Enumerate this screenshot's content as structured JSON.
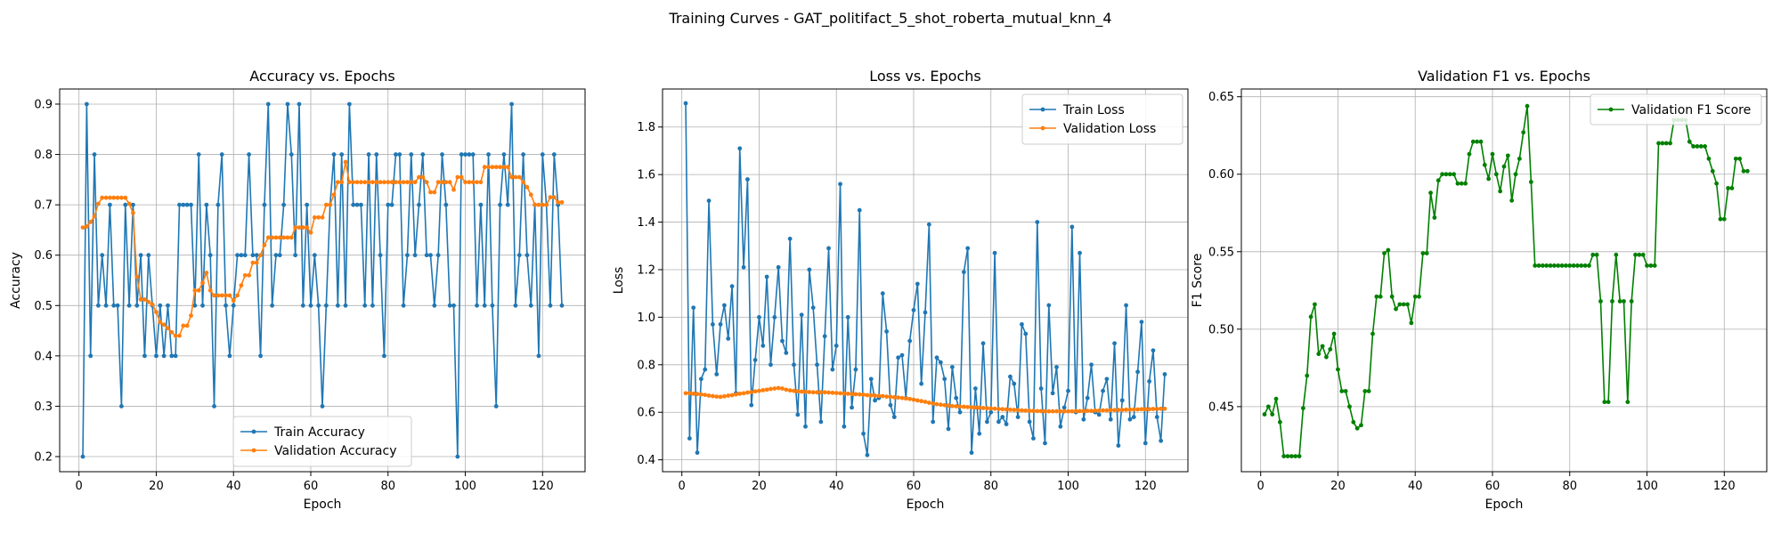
{
  "figure": {
    "suptitle": "Training Curves - GAT_politifact_5_shot_roberta_mutual_knn_4"
  },
  "chart_data": [
    {
      "type": "line",
      "title": "Accuracy vs. Epochs",
      "xlabel": "Epoch",
      "ylabel": "Accuracy",
      "xlim": [
        -5,
        131
      ],
      "ylim": [
        0.17,
        0.93
      ],
      "xticks": [
        0,
        20,
        40,
        60,
        80,
        100,
        120
      ],
      "yticks": [
        0.2,
        0.3,
        0.4,
        0.5,
        0.6,
        0.7,
        0.8,
        0.9
      ],
      "ytick_labels": [
        "0.2",
        "0.3",
        "0.4",
        "0.5",
        "0.6",
        "0.7",
        "0.8",
        "0.9"
      ],
      "grid": true,
      "legend_position": "lower-center",
      "series": [
        {
          "name": "Train Accuracy",
          "color": "#1f77b4",
          "values": [
            0.2,
            0.9,
            0.4,
            0.8,
            0.5,
            0.6,
            0.5,
            0.7,
            0.5,
            0.5,
            0.3,
            0.7,
            0.5,
            0.7,
            0.5,
            0.6,
            0.4,
            0.6,
            0.5,
            0.4,
            0.5,
            0.4,
            0.5,
            0.4,
            0.4,
            0.7,
            0.7,
            0.7,
            0.7,
            0.5,
            0.8,
            0.5,
            0.7,
            0.6,
            0.3,
            0.7,
            0.8,
            0.5,
            0.4,
            0.5,
            0.6,
            0.6,
            0.6,
            0.8,
            0.6,
            0.6,
            0.4,
            0.7,
            0.9,
            0.5,
            0.6,
            0.6,
            0.7,
            0.9,
            0.8,
            0.6,
            0.9,
            0.5,
            0.7,
            0.5,
            0.6,
            0.5,
            0.3,
            0.5,
            0.7,
            0.8,
            0.5,
            0.8,
            0.5,
            0.9,
            0.7,
            0.7,
            0.7,
            0.5,
            0.8,
            0.5,
            0.8,
            0.6,
            0.4,
            0.7,
            0.7,
            0.8,
            0.8,
            0.5,
            0.6,
            0.8,
            0.6,
            0.7,
            0.8,
            0.6,
            0.6,
            0.5,
            0.6,
            0.8,
            0.7,
            0.5,
            0.5,
            0.2,
            0.8,
            0.8,
            0.8,
            0.8,
            0.5,
            0.7,
            0.5,
            0.8,
            0.5,
            0.3,
            0.7,
            0.8,
            0.7,
            0.9,
            0.5,
            0.6,
            0.8,
            0.6,
            0.5,
            0.7,
            0.4,
            0.8,
            0.7,
            0.5,
            0.8,
            0.7,
            0.5
          ]
        },
        {
          "name": "Validation Accuracy",
          "color": "#ff7f0e",
          "values": [
            0.655,
            0.657,
            0.666,
            0.677,
            0.702,
            0.714,
            0.714,
            0.714,
            0.714,
            0.714,
            0.714,
            0.714,
            0.702,
            0.684,
            0.557,
            0.512,
            0.512,
            0.507,
            0.502,
            0.487,
            0.467,
            0.462,
            0.455,
            0.447,
            0.44,
            0.44,
            0.46,
            0.46,
            0.48,
            0.53,
            0.53,
            0.545,
            0.565,
            0.53,
            0.52,
            0.52,
            0.52,
            0.52,
            0.52,
            0.51,
            0.52,
            0.54,
            0.56,
            0.56,
            0.585,
            0.585,
            0.6,
            0.62,
            0.635,
            0.635,
            0.635,
            0.635,
            0.635,
            0.635,
            0.635,
            0.655,
            0.655,
            0.655,
            0.655,
            0.645,
            0.675,
            0.675,
            0.675,
            0.7,
            0.7,
            0.72,
            0.745,
            0.745,
            0.785,
            0.745,
            0.745,
            0.745,
            0.745,
            0.745,
            0.745,
            0.745,
            0.745,
            0.745,
            0.745,
            0.745,
            0.745,
            0.745,
            0.745,
            0.745,
            0.745,
            0.745,
            0.745,
            0.755,
            0.755,
            0.745,
            0.725,
            0.725,
            0.745,
            0.745,
            0.745,
            0.745,
            0.73,
            0.755,
            0.755,
            0.745,
            0.745,
            0.745,
            0.745,
            0.745,
            0.775,
            0.775,
            0.775,
            0.775,
            0.775,
            0.775,
            0.775,
            0.755,
            0.755,
            0.755,
            0.745,
            0.735,
            0.72,
            0.7,
            0.7,
            0.7,
            0.7,
            0.715,
            0.715,
            0.705,
            0.705
          ]
        }
      ]
    },
    {
      "type": "line",
      "title": "Loss vs. Epochs",
      "xlabel": "Epoch",
      "ylabel": "Loss",
      "xlim": [
        -5,
        131
      ],
      "ylim": [
        0.35,
        1.96
      ],
      "xticks": [
        0,
        20,
        40,
        60,
        80,
        100,
        120
      ],
      "yticks": [
        0.4,
        0.6,
        0.8,
        1.0,
        1.2,
        1.4,
        1.6,
        1.8
      ],
      "ytick_labels": [
        "0.4",
        "0.6",
        "0.8",
        "1.0",
        "1.2",
        "1.4",
        "1.6",
        "1.8"
      ],
      "grid": true,
      "legend_position": "upper-right",
      "series": [
        {
          "name": "Train Loss",
          "color": "#1f77b4",
          "values": [
            1.9,
            0.49,
            1.04,
            0.43,
            0.74,
            0.78,
            1.49,
            0.97,
            0.76,
            0.97,
            1.05,
            0.91,
            1.13,
            0.68,
            1.71,
            1.21,
            1.58,
            0.63,
            0.82,
            1.0,
            0.88,
            1.17,
            0.8,
            1.0,
            1.21,
            0.9,
            0.85,
            1.33,
            0.8,
            0.59,
            1.01,
            0.54,
            1.2,
            1.04,
            0.8,
            0.56,
            0.92,
            1.29,
            0.78,
            0.88,
            1.56,
            0.54,
            1.0,
            0.62,
            0.78,
            1.45,
            0.51,
            0.42,
            0.74,
            0.65,
            0.66,
            1.1,
            0.94,
            0.63,
            0.58,
            0.83,
            0.84,
            0.66,
            0.9,
            1.03,
            1.14,
            0.72,
            1.02,
            1.39,
            0.56,
            0.83,
            0.81,
            0.74,
            0.53,
            0.79,
            0.66,
            0.6,
            1.19,
            1.29,
            0.43,
            0.7,
            0.51,
            0.89,
            0.56,
            0.6,
            1.27,
            0.56,
            0.58,
            0.55,
            0.75,
            0.72,
            0.58,
            0.97,
            0.93,
            0.56,
            0.49,
            1.4,
            0.7,
            0.47,
            1.05,
            0.68,
            0.79,
            0.54,
            0.62,
            0.69,
            1.38,
            0.6,
            1.27,
            0.57,
            0.66,
            0.8,
            0.6,
            0.59,
            0.69,
            0.74,
            0.57,
            0.89,
            0.46,
            0.65,
            1.05,
            0.57,
            0.58,
            0.77,
            0.98,
            0.47,
            0.73,
            0.86,
            0.58,
            0.48,
            0.76
          ]
        },
        {
          "name": "Validation Loss",
          "color": "#ff7f0e",
          "values": [
            0.68,
            0.68,
            0.678,
            0.677,
            0.675,
            0.673,
            0.67,
            0.668,
            0.666,
            0.665,
            0.667,
            0.67,
            0.672,
            0.675,
            0.678,
            0.68,
            0.683,
            0.685,
            0.688,
            0.69,
            0.693,
            0.695,
            0.698,
            0.7,
            0.702,
            0.7,
            0.695,
            0.692,
            0.69,
            0.688,
            0.687,
            0.686,
            0.685,
            0.684,
            0.684,
            0.684,
            0.684,
            0.683,
            0.682,
            0.681,
            0.68,
            0.679,
            0.678,
            0.677,
            0.676,
            0.675,
            0.674,
            0.672,
            0.671,
            0.67,
            0.669,
            0.668,
            0.666,
            0.665,
            0.663,
            0.662,
            0.66,
            0.658,
            0.656,
            0.653,
            0.65,
            0.647,
            0.644,
            0.64,
            0.637,
            0.634,
            0.632,
            0.63,
            0.628,
            0.626,
            0.625,
            0.624,
            0.623,
            0.622,
            0.621,
            0.62,
            0.619,
            0.618,
            0.617,
            0.616,
            0.615,
            0.614,
            0.613,
            0.612,
            0.611,
            0.61,
            0.609,
            0.608,
            0.607,
            0.606,
            0.606,
            0.605,
            0.605,
            0.604,
            0.604,
            0.604,
            0.604,
            0.604,
            0.604,
            0.604,
            0.604,
            0.605,
            0.605,
            0.605,
            0.606,
            0.606,
            0.607,
            0.607,
            0.608,
            0.608,
            0.609,
            0.609,
            0.61,
            0.61,
            0.611,
            0.611,
            0.612,
            0.612,
            0.613,
            0.613,
            0.613,
            0.614,
            0.614,
            0.615,
            0.615
          ]
        }
      ]
    },
    {
      "type": "line",
      "title": "Validation F1 vs. Epochs",
      "xlabel": "Epoch",
      "ylabel": "F1 Score",
      "xlim": [
        -5,
        131
      ],
      "ylim": [
        0.408,
        0.655
      ],
      "xticks": [
        0,
        20,
        40,
        60,
        80,
        100,
        120
      ],
      "yticks": [
        0.45,
        0.5,
        0.55,
        0.6,
        0.65
      ],
      "ytick_labels": [
        "0.45",
        "0.50",
        "0.55",
        "0.60",
        "0.65"
      ],
      "grid": true,
      "legend_position": "upper-right",
      "series": [
        {
          "name": "Validation F1 Score",
          "color": "#008000",
          "values": [
            0.445,
            0.45,
            0.445,
            0.455,
            0.44,
            0.418,
            0.418,
            0.418,
            0.418,
            0.418,
            0.449,
            0.47,
            0.508,
            0.516,
            0.484,
            0.489,
            0.482,
            0.487,
            0.497,
            0.474,
            0.46,
            0.46,
            0.45,
            0.44,
            0.436,
            0.438,
            0.46,
            0.46,
            0.497,
            0.521,
            0.521,
            0.549,
            0.551,
            0.521,
            0.513,
            0.516,
            0.516,
            0.516,
            0.504,
            0.521,
            0.521,
            0.549,
            0.549,
            0.588,
            0.572,
            0.596,
            0.6,
            0.6,
            0.6,
            0.6,
            0.594,
            0.594,
            0.594,
            0.613,
            0.621,
            0.621,
            0.621,
            0.606,
            0.597,
            0.613,
            0.6,
            0.589,
            0.605,
            0.612,
            0.583,
            0.6,
            0.61,
            0.627,
            0.644,
            0.595,
            0.541,
            0.541,
            0.541,
            0.541,
            0.541,
            0.541,
            0.541,
            0.541,
            0.541,
            0.541,
            0.541,
            0.541,
            0.541,
            0.541,
            0.541,
            0.548,
            0.548,
            0.518,
            0.453,
            0.453,
            0.518,
            0.548,
            0.518,
            0.518,
            0.453,
            0.518,
            0.548,
            0.548,
            0.548,
            0.541,
            0.541,
            0.541,
            0.62,
            0.62,
            0.62,
            0.62,
            0.635,
            0.635,
            0.635,
            0.635,
            0.621,
            0.618,
            0.618,
            0.618,
            0.618,
            0.61,
            0.602,
            0.594,
            0.571,
            0.571,
            0.591,
            0.591,
            0.61,
            0.61,
            0.602,
            0.602
          ]
        }
      ]
    }
  ]
}
